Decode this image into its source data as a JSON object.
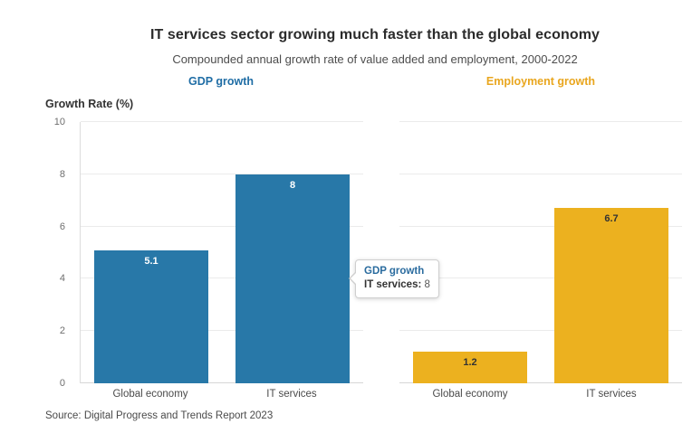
{
  "title": "IT services sector growing much faster than the global economy",
  "subtitle": "Compounded annual growth rate of value added and employment, 2000-2022",
  "y_axis_title": "Growth Rate (%)",
  "source": "Source: Digital Progress and Trends Report 2023",
  "tooltip": {
    "series": "GDP growth",
    "label": "IT services:",
    "value": "8",
    "series_color": "#2b6c9f"
  },
  "chart_data": {
    "type": "bar",
    "ylabel": "Growth Rate (%)",
    "ylim": [
      0,
      10
    ],
    "yticks": [
      0,
      2,
      4,
      6,
      8,
      10
    ],
    "grid": "horizontal",
    "legend_position": "facet-top-labels",
    "categories": [
      "Global economy",
      "IT services"
    ],
    "facets": [
      {
        "label": "GDP growth",
        "label_color": "#1f6da5",
        "bar_color": "#2878a8",
        "value_label_color": "#ffffff",
        "categories": [
          "Global economy",
          "IT services"
        ],
        "values": [
          5.1,
          8
        ]
      },
      {
        "label": "Employment growth",
        "label_color": "#e9a61e",
        "bar_color": "#ecb11f",
        "value_label_color": "#333333",
        "categories": [
          "Global economy",
          "IT services"
        ],
        "values": [
          1.2,
          6.7
        ]
      }
    ]
  }
}
